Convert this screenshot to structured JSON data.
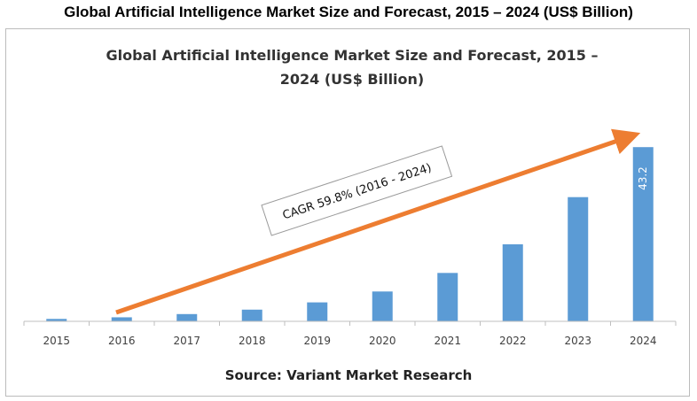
{
  "page_title": "Global Artificial Intelligence Market Size and Forecast, 2015 – 2024 (US$ Billion)",
  "colors": {
    "bar": "#5b9bd5",
    "arrow": "#ed7d31",
    "axis": "#bfbfbf",
    "text": "#333333"
  },
  "chart_data": {
    "type": "bar",
    "title": "Global Artificial Intelligence Market Size and Forecast, 2015 – 2024 (US$ Billion)",
    "title_lines": [
      "Global Artificial Intelligence Market Size and Forecast, 2015 –",
      "2024 (US$ Billion)"
    ],
    "categories": [
      "2015",
      "2016",
      "2017",
      "2018",
      "2019",
      "2020",
      "2021",
      "2022",
      "2023",
      "2024"
    ],
    "values": [
      0.6,
      1.0,
      1.8,
      2.9,
      4.7,
      7.4,
      12.0,
      19.1,
      30.8,
      43.2
    ],
    "data_labels": {
      "2024": "43.2"
    },
    "ylim": [
      0,
      45
    ],
    "xlabel": "",
    "ylabel": "",
    "grid": false,
    "annotation": "CAGR 59.8% (2016 - 2024)",
    "source": "Source: Variant Market Research"
  }
}
